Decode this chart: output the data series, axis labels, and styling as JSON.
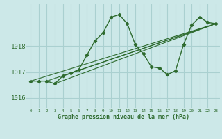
{
  "title": "Graphe pression niveau de la mer (hPa)",
  "bg_color": "#cce8e8",
  "grid_color": "#aad0d0",
  "line_color": "#2d6a2d",
  "xlim": [
    -0.5,
    23.5
  ],
  "ylim": [
    1015.6,
    1019.6
  ],
  "yticks": [
    1016,
    1017,
    1018
  ],
  "xticks": [
    0,
    1,
    2,
    3,
    4,
    5,
    6,
    7,
    8,
    9,
    10,
    11,
    12,
    13,
    14,
    15,
    16,
    17,
    18,
    19,
    20,
    21,
    22,
    23
  ],
  "series": [
    [
      0,
      1016.65
    ],
    [
      1,
      1016.65
    ],
    [
      2,
      1016.65
    ],
    [
      3,
      1016.55
    ],
    [
      4,
      1016.85
    ],
    [
      5,
      1016.95
    ],
    [
      6,
      1017.1
    ],
    [
      7,
      1017.65
    ],
    [
      8,
      1018.2
    ],
    [
      9,
      1018.5
    ],
    [
      10,
      1019.1
    ],
    [
      11,
      1019.2
    ],
    [
      12,
      1018.85
    ],
    [
      13,
      1018.05
    ],
    [
      14,
      1017.7
    ],
    [
      15,
      1017.2
    ],
    [
      16,
      1017.15
    ],
    [
      17,
      1016.9
    ],
    [
      18,
      1017.05
    ],
    [
      19,
      1018.05
    ],
    [
      20,
      1018.8
    ],
    [
      21,
      1019.1
    ],
    [
      22,
      1018.9
    ],
    [
      23,
      1018.85
    ]
  ],
  "ref_lines": [
    [
      [
        0,
        1016.65
      ],
      [
        23,
        1018.85
      ]
    ],
    [
      [
        2,
        1016.65
      ],
      [
        23,
        1018.85
      ]
    ],
    [
      [
        3,
        1016.55
      ],
      [
        23,
        1018.85
      ]
    ],
    [
      [
        4,
        1016.85
      ],
      [
        23,
        1018.85
      ]
    ]
  ]
}
